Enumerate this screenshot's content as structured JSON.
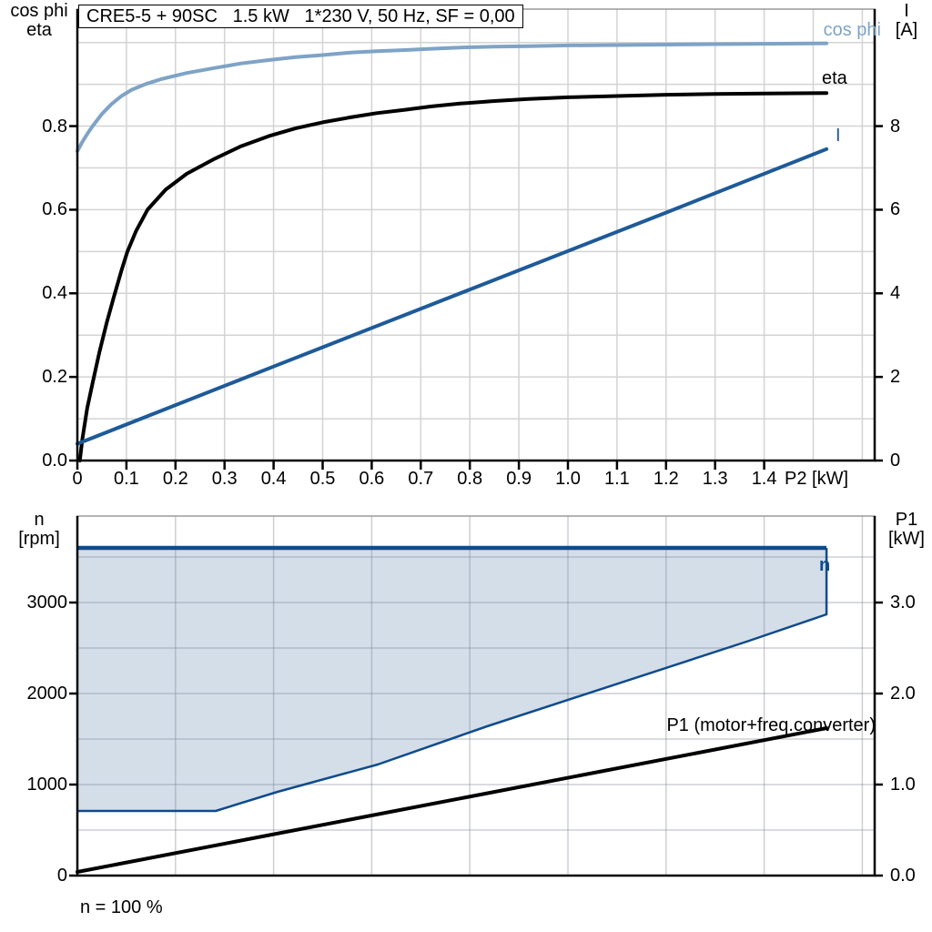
{
  "title_box": "CRE5-5 + 90SC   1.5 kW   1*230 V, 50 Hz, SF = 0,00",
  "colors": {
    "grid": "#d3d3d3",
    "axis": "#000000",
    "chart_bg": "#ffffff",
    "cos_phi": "#7ea3c6",
    "eta": "#000000",
    "current": "#1e5a99",
    "n_region_line": "#0e4b8c",
    "n_region_fill": "#d4dee9",
    "p1_line": "#000000"
  },
  "chart_data": [
    {
      "type": "line",
      "title": "CRE5-5 + 90SC   1.5 kW   1*230 V, 50 Hz, SF = 0,00",
      "x_axis": {
        "label": "P2 [kW]",
        "tick_labels": [
          "0",
          "0.1",
          "0.2",
          "0.3",
          "0.4",
          "0.5",
          "0.6",
          "0.7",
          "0.8",
          "0.9",
          "1.0",
          "1.1",
          "1.2",
          "1.3",
          "1.4"
        ],
        "tick_values": [
          0,
          0.1,
          0.2,
          0.3,
          0.4,
          0.5,
          0.6,
          0.7,
          0.8,
          0.9,
          1.0,
          1.1,
          1.2,
          1.3,
          1.4
        ],
        "range": [
          0,
          1.63
        ],
        "grid_step": 0.1
      },
      "left_axis": {
        "line1": "cos phi",
        "line2": "eta",
        "tick_labels": [
          "0.0",
          "0.2",
          "0.4",
          "0.6",
          "0.8"
        ],
        "tick_values": [
          0,
          0.2,
          0.4,
          0.6,
          0.8
        ],
        "range": [
          0,
          1.08
        ],
        "grid_step": 0.1
      },
      "right_axis": {
        "line1": "I",
        "line2": "[A]",
        "tick_labels": [
          "0",
          "2",
          "4",
          "6",
          "8"
        ],
        "tick_values": [
          0,
          2,
          4,
          6,
          8
        ],
        "range": [
          0,
          10.8
        ]
      },
      "series": [
        {
          "name": "cos phi",
          "axis": "left",
          "color": "#7ea3c6",
          "points": [
            [
              0,
              0.74
            ],
            [
              0.01,
              0.762
            ],
            [
              0.02,
              0.781
            ],
            [
              0.031,
              0.8
            ],
            [
              0.05,
              0.829
            ],
            [
              0.07,
              0.853
            ],
            [
              0.09,
              0.872
            ],
            [
              0.111,
              0.887
            ],
            [
              0.14,
              0.901
            ],
            [
              0.17,
              0.912
            ],
            [
              0.223,
              0.927
            ],
            [
              0.28,
              0.939
            ],
            [
              0.334,
              0.95
            ],
            [
              0.39,
              0.958
            ],
            [
              0.445,
              0.965
            ],
            [
              0.5,
              0.97
            ],
            [
              0.557,
              0.976
            ],
            [
              0.61,
              0.979
            ],
            [
              0.668,
              0.982
            ],
            [
              0.72,
              0.985
            ],
            [
              0.78,
              0.988
            ],
            [
              0.85,
              0.99
            ],
            [
              0.92,
              0.991
            ],
            [
              1.0,
              0.993
            ],
            [
              1.1,
              0.994
            ],
            [
              1.2,
              0.995
            ],
            [
              1.3,
              0.996
            ],
            [
              1.4,
              0.997
            ],
            [
              1.527,
              0.998
            ]
          ]
        },
        {
          "name": "eta",
          "axis": "left",
          "color": "#000000",
          "points": [
            [
              0.005,
              0
            ],
            [
              0.01,
              0.05
            ],
            [
              0.02,
              0.125
            ],
            [
              0.032,
              0.19
            ],
            [
              0.045,
              0.26
            ],
            [
              0.06,
              0.33
            ],
            [
              0.074,
              0.39
            ],
            [
              0.09,
              0.455
            ],
            [
              0.102,
              0.5
            ],
            [
              0.12,
              0.55
            ],
            [
              0.143,
              0.6
            ],
            [
              0.18,
              0.648
            ],
            [
              0.223,
              0.686
            ],
            [
              0.28,
              0.722
            ],
            [
              0.334,
              0.752
            ],
            [
              0.39,
              0.776
            ],
            [
              0.445,
              0.795
            ],
            [
              0.5,
              0.809
            ],
            [
              0.557,
              0.821
            ],
            [
              0.61,
              0.831
            ],
            [
              0.668,
              0.839
            ],
            [
              0.72,
              0.847
            ],
            [
              0.78,
              0.854
            ],
            [
              0.85,
              0.86
            ],
            [
              0.92,
              0.865
            ],
            [
              1.0,
              0.869
            ],
            [
              1.1,
              0.872
            ],
            [
              1.2,
              0.875
            ],
            [
              1.3,
              0.877
            ],
            [
              1.4,
              0.878
            ],
            [
              1.527,
              0.879
            ]
          ]
        },
        {
          "name": "I",
          "axis": "right",
          "color": "#1e5a99",
          "points": [
            [
              0,
              0.4
            ],
            [
              0.4,
              2.25
            ],
            [
              0.8,
              4.09
            ],
            [
              1.2,
              5.93
            ],
            [
              1.527,
              7.45
            ]
          ]
        }
      ]
    },
    {
      "type": "area",
      "x_axis": {
        "label": "n = 100 %",
        "tick_labels": [],
        "tick_values": [],
        "range": [
          0,
          1.63
        ],
        "grid_step": 0.2
      },
      "left_axis": {
        "line1": "n",
        "line2": "[rpm]",
        "tick_labels": [
          "0",
          "1000",
          "2000",
          "3000"
        ],
        "tick_values": [
          0,
          1000,
          2000,
          3000
        ],
        "range": [
          0,
          3950
        ],
        "grid_step": 500
      },
      "right_axis": {
        "line1": "P1",
        "line2": "[kW]",
        "tick_labels": [
          "0.0",
          "1.0",
          "2.0",
          "3.0"
        ],
        "tick_values": [
          0,
          1,
          2,
          3
        ],
        "range": [
          0,
          3.95
        ]
      },
      "series": [
        {
          "name": "n",
          "type": "area",
          "color": "#0e4b8c",
          "fill": "#d4dee9",
          "n_max": 3600,
          "x_end": 1.527,
          "lower_boundary": [
            [
              0,
              710
            ],
            [
              0.282,
              710
            ],
            [
              0.408,
              920
            ],
            [
              0.612,
              1220
            ],
            [
              0.835,
              1640
            ],
            [
              1.364,
              2570
            ],
            [
              1.527,
              2870
            ]
          ]
        },
        {
          "name": "P1 (motor+freq.converter)",
          "type": "line",
          "axis": "right",
          "color": "#000000",
          "points": [
            [
              0,
              0.04
            ],
            [
              1.527,
              1.62
            ]
          ]
        }
      ]
    }
  ]
}
